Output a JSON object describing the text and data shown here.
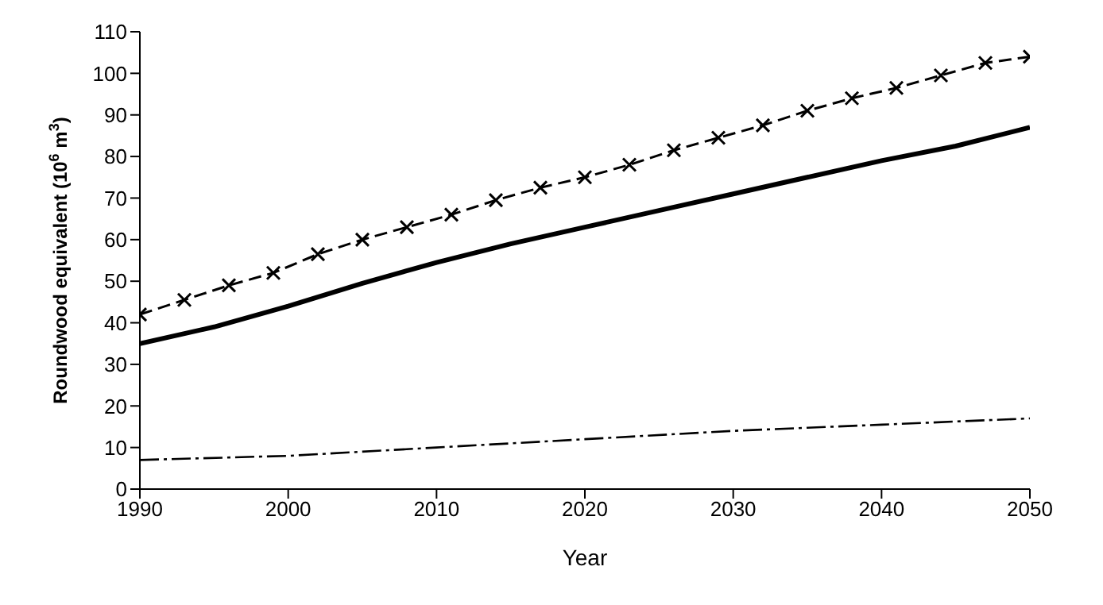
{
  "chart_data": {
    "type": "line",
    "xlabel": "Year",
    "ylabel": "Roundwood equivalent (10$^{6}$ m$^{3}$)",
    "xlim": [
      1990,
      2050
    ],
    "xticks": [
      1990,
      2000,
      2010,
      2020,
      2030,
      2040,
      2050
    ],
    "ylim": [
      0,
      110
    ],
    "yticks": [
      0,
      10,
      20,
      30,
      40,
      50,
      60,
      70,
      80,
      90,
      100,
      110
    ],
    "series": [
      {
        "color": "#000000",
        "marker": "cross",
        "line_style": "dashed",
        "x": [
          1990,
          1993,
          1996,
          1999,
          2002,
          2005,
          2008,
          2011,
          2014,
          2017,
          2020,
          2023,
          2026,
          2029,
          2032,
          2035,
          2038,
          2041,
          2044,
          2047,
          2050
        ],
        "values": [
          42,
          45.5,
          49,
          52,
          56.5,
          60,
          63,
          66,
          69.5,
          72.5,
          75,
          78,
          81.5,
          84.5,
          87.5,
          91,
          94,
          96.5,
          99.5,
          102.5,
          104
        ]
      },
      {
        "color": "#000000",
        "marker": "none",
        "line_style": "solid",
        "x": [
          1990,
          1995,
          2000,
          2005,
          2010,
          2015,
          2020,
          2025,
          2030,
          2035,
          2040,
          2045,
          2050
        ],
        "values": [
          35,
          39,
          44,
          49.5,
          54.5,
          59,
          63,
          67,
          71,
          75,
          79,
          82.5,
          87
        ]
      },
      {
        "color": "#000000",
        "marker": "none",
        "line_style": "dotted",
        "x": [
          1990,
          2000,
          2010,
          2020,
          2030,
          2040,
          2050
        ],
        "values": [
          7,
          8,
          10,
          12,
          14,
          15.5,
          17
        ]
      }
    ]
  }
}
